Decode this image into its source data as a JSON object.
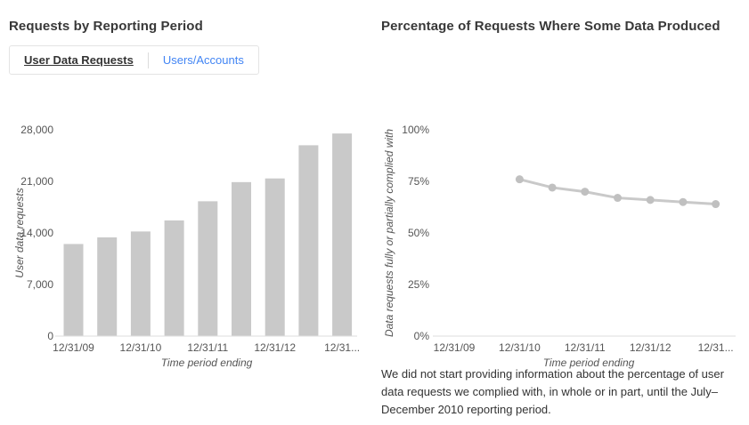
{
  "left_panel": {
    "title": "Requests by Reporting Period",
    "tabs": [
      {
        "label": "User Data Requests",
        "active": true
      },
      {
        "label": "Users/Accounts",
        "active": false
      }
    ]
  },
  "right_panel": {
    "title": "Percentage of Requests Where Some Data Produced",
    "footnote": "We did not start providing information about the percentage of user data requests we complied with, in whole or in part, until the July–December 2010 reporting period."
  },
  "chart_data": [
    {
      "type": "bar",
      "title": "Requests by Reporting Period",
      "xlabel": "Time period ending",
      "ylabel": "User data requests",
      "num_slots": 9,
      "x_tick_labels": [
        "12/31/09",
        "12/31/10",
        "12/31/11",
        "12/31/12",
        "12/31..."
      ],
      "labeled_slot_indices": [
        0,
        2,
        4,
        6,
        8
      ],
      "values": [
        12500,
        13400,
        14200,
        15700,
        18300,
        20900,
        21400,
        25900,
        27500
      ],
      "ylim": [
        0,
        28000
      ],
      "y_ticks": [
        0,
        7000,
        14000,
        21000,
        28000
      ],
      "y_tick_labels": [
        "0",
        "7,000",
        "14,000",
        "21,000",
        "28,000"
      ],
      "bar_color": "#c9c9c9",
      "grid": false,
      "legend": false,
      "note": "half-year reporting periods; only alternating periods have x labels"
    },
    {
      "type": "line",
      "title": "Percentage of Requests Where Some Data Produced",
      "xlabel": "Time period ending",
      "ylabel": "Data requests fully or partially complied with",
      "num_slots": 9,
      "x_tick_labels": [
        "12/31/09",
        "12/31/10",
        "12/31/11",
        "12/31/12",
        "12/31..."
      ],
      "labeled_slot_indices": [
        0,
        2,
        4,
        6,
        8
      ],
      "start_slot": 2,
      "values": [
        76,
        72,
        70,
        67,
        66,
        65,
        64
      ],
      "ylim": [
        0,
        100
      ],
      "y_ticks": [
        0,
        25,
        50,
        75,
        100
      ],
      "y_tick_labels": [
        "0%",
        "25%",
        "50%",
        "75%",
        "100%"
      ],
      "line_color": "#c9c9c9",
      "point_color": "#c0c0c0",
      "grid": false,
      "legend": false,
      "note": "series begins at the 12/31/10 period (slot index 2 of 9)"
    }
  ]
}
